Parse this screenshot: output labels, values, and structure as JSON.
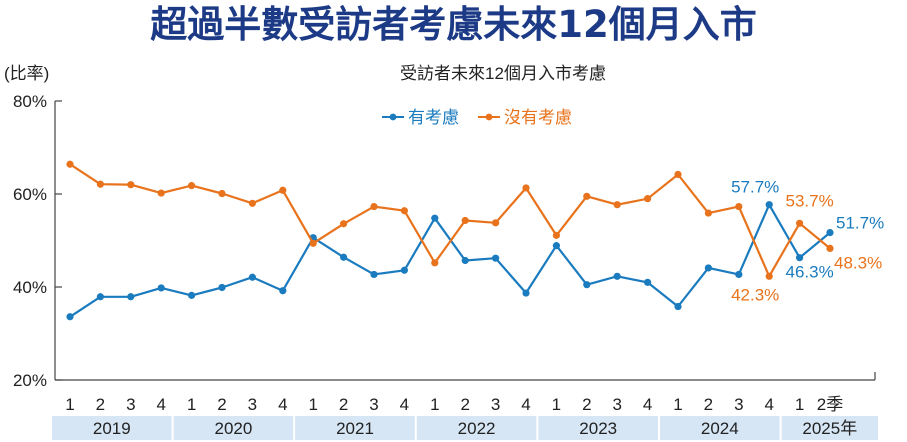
{
  "headline": "超過半數受訪者考慮未來12個月入市",
  "chart_data": {
    "type": "line",
    "title": "受訪者未來12個月入市考慮",
    "ylabel": "(比率)",
    "y_ticks": [
      "20%",
      "40%",
      "60%",
      "80%"
    ],
    "ylim": [
      20,
      80
    ],
    "quarter_labels": [
      "1",
      "2",
      "3",
      "4",
      "1",
      "2",
      "3",
      "4",
      "1",
      "2",
      "3",
      "4",
      "1",
      "2",
      "3",
      "4",
      "1",
      "2",
      "3",
      "4",
      "1",
      "2",
      "3",
      "4",
      "1",
      "2季"
    ],
    "years": [
      {
        "label": "2019",
        "quarters": 4
      },
      {
        "label": "2020",
        "quarters": 4
      },
      {
        "label": "2021",
        "quarters": 4
      },
      {
        "label": "2022",
        "quarters": 4
      },
      {
        "label": "2023",
        "quarters": 4
      },
      {
        "label": "2024",
        "quarters": 4
      },
      {
        "label": "2025年",
        "quarters": 2
      }
    ],
    "legend_position": "top-center",
    "grid": false,
    "series": [
      {
        "name": "有考慮",
        "color": "#1a7bbf",
        "values": [
          33.6,
          37.9,
          37.9,
          39.8,
          38.2,
          39.9,
          42.1,
          39.2,
          50.6,
          46.4,
          42.7,
          43.6,
          54.8,
          45.7,
          46.2,
          38.7,
          48.9,
          40.5,
          42.3,
          41.0,
          35.8,
          44.1,
          42.7,
          57.7,
          46.3,
          51.7
        ],
        "labels": [
          {
            "index": 23,
            "text": "57.7%"
          },
          {
            "index": 24,
            "text": "46.3%"
          },
          {
            "index": 25,
            "text": "51.7%"
          }
        ]
      },
      {
        "name": "沒有考慮",
        "color": "#e8731c",
        "values": [
          66.4,
          62.1,
          62.0,
          60.2,
          61.8,
          60.1,
          58.0,
          60.8,
          49.4,
          53.6,
          57.3,
          56.4,
          45.2,
          54.3,
          53.8,
          61.3,
          51.1,
          59.5,
          57.7,
          59.0,
          64.2,
          55.9,
          57.3,
          42.3,
          53.7,
          48.3
        ],
        "labels": [
          {
            "index": 23,
            "text": "42.3%"
          },
          {
            "index": 24,
            "text": "53.7%"
          },
          {
            "index": 25,
            "text": "48.3%"
          }
        ]
      }
    ]
  }
}
